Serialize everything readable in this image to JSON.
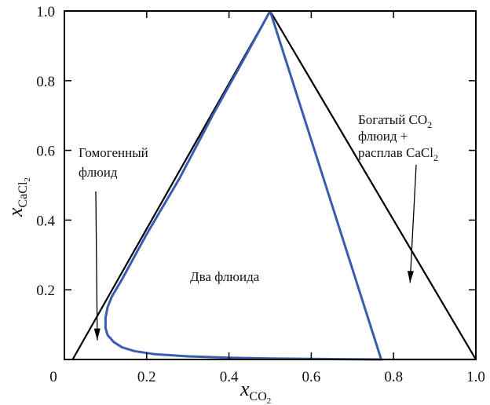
{
  "chart_data": {
    "type": "line",
    "xlim": [
      0,
      1
    ],
    "ylim": [
      0,
      1
    ],
    "grid": false,
    "x_ticks": [
      "0",
      "0.2",
      "0.4",
      "0.6",
      "0.8",
      "1.0"
    ],
    "y_ticks": [
      "0.2",
      "0.4",
      "0.6",
      "0.8",
      "1.0"
    ],
    "xlabel": {
      "base": "x",
      "sub_main": "CO",
      "sub_sub": "2"
    },
    "ylabel": {
      "base": "x",
      "sub_main": "CaCl",
      "sub_sub": "2"
    },
    "series": [
      {
        "color": "#000000",
        "x": [
          0.02,
          0.5,
          1.0
        ],
        "y": [
          0.0,
          1.0,
          0.0
        ]
      },
      {
        "color": "#3a5bb0",
        "x": [
          0.5,
          0.44,
          0.36,
          0.28,
          0.2,
          0.14,
          0.115,
          0.105,
          0.1,
          0.1,
          0.105,
          0.12,
          0.14,
          0.17,
          0.22,
          0.3,
          0.4,
          0.5,
          0.6,
          0.7,
          0.77,
          0.5
        ],
        "y": [
          1.0,
          0.87,
          0.7,
          0.52,
          0.36,
          0.23,
          0.18,
          0.15,
          0.12,
          0.09,
          0.07,
          0.05,
          0.035,
          0.024,
          0.015,
          0.009,
          0.005,
          0.003,
          0.0015,
          0.0005,
          0.0,
          1.0
        ]
      },
      {
        "color": "#8b1a1a",
        "x": [
          0.77,
          1.0
        ],
        "y": [
          0.0,
          0.0
        ]
      }
    ],
    "annotations": [
      {
        "lines": [
          "Гомогенный",
          "флюид"
        ],
        "arrow_to": [
          0.08,
          0.055
        ]
      },
      {
        "lines": [
          "Два флюида"
        ]
      },
      {
        "lines": [
          "Богатый CO",
          "флюид +",
          "расплав CaCl"
        ],
        "subs": [
          "2",
          "",
          "2"
        ],
        "arrow_to": [
          0.84,
          0.22
        ]
      }
    ]
  }
}
